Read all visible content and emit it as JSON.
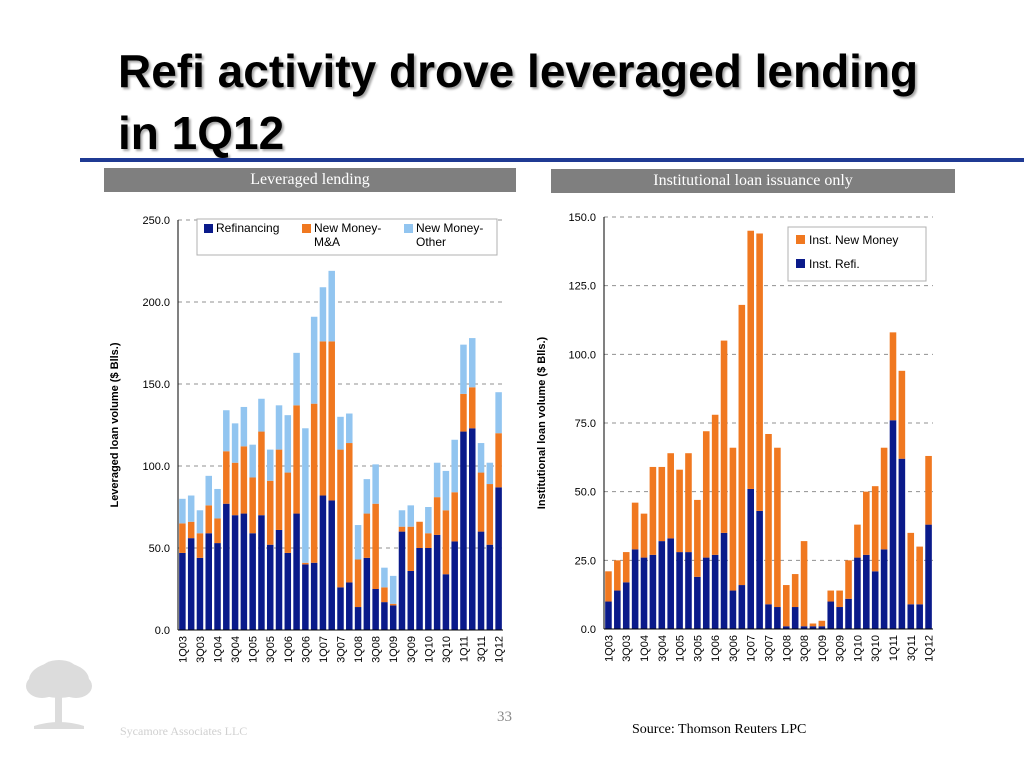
{
  "slide": {
    "title": "Refi activity drove leveraged lending in 1Q12",
    "page_number": "33",
    "source": "Source: Thomson Reuters LPC",
    "company": "Sycamore Associates LLC",
    "accent_color": "#1f3a93"
  },
  "chart_data": [
    {
      "type": "bar",
      "stacked": true,
      "panel_title": "Leveraged lending",
      "ylabel": "Leveraged loan volume ($ Blls.)",
      "ylim": [
        0,
        250
      ],
      "yticks": [
        "0.0",
        "50.0",
        "100.0",
        "150.0",
        "200.0",
        "250.0"
      ],
      "grid": true,
      "legend_position": "top",
      "categories": [
        "1Q03",
        "2Q03",
        "3Q03",
        "4Q03",
        "1Q04",
        "2Q04",
        "3Q04",
        "4Q04",
        "1Q05",
        "2Q05",
        "3Q05",
        "4Q05",
        "1Q06",
        "2Q06",
        "3Q06",
        "4Q06",
        "1Q07",
        "2Q07",
        "3Q07",
        "4Q07",
        "1Q08",
        "2Q08",
        "3Q08",
        "4Q08",
        "1Q09",
        "2Q09",
        "3Q09",
        "4Q09",
        "1Q10",
        "2Q10",
        "3Q10",
        "4Q10",
        "1Q11",
        "2Q11",
        "3Q11",
        "4Q11",
        "1Q12"
      ],
      "tick_labels": [
        "1Q03",
        "3Q03",
        "1Q04",
        "3Q04",
        "1Q05",
        "3Q05",
        "1Q06",
        "3Q06",
        "1Q07",
        "3Q07",
        "1Q08",
        "3Q08",
        "1Q09",
        "3Q09",
        "1Q10",
        "3Q10",
        "1Q11",
        "3Q11",
        "1Q12"
      ],
      "series": [
        {
          "name": "Refinancing",
          "color": "#0a1a8a",
          "values": [
            47,
            56,
            44,
            59,
            53,
            77,
            70,
            71,
            59,
            70,
            52,
            61,
            47,
            71,
            40,
            41,
            82,
            79,
            26,
            29,
            14,
            44,
            25,
            17,
            15,
            60,
            36,
            50,
            50,
            58,
            34,
            54,
            121,
            123,
            60,
            52,
            87
          ]
        },
        {
          "name": "New Money-M&A",
          "color": "#f07820",
          "values": [
            18,
            10,
            15,
            17,
            15,
            32,
            32,
            41,
            34,
            51,
            39,
            49,
            49,
            66,
            1,
            97,
            94,
            97,
            84,
            85,
            29,
            27,
            52,
            9,
            1,
            3,
            27,
            16,
            9,
            23,
            39,
            30,
            23,
            25,
            36,
            37,
            33
          ]
        },
        {
          "name": "New Money-Other",
          "color": "#92c5f0",
          "values": [
            15,
            16,
            14,
            18,
            18,
            25,
            24,
            24,
            20,
            20,
            19,
            27,
            35,
            32,
            82,
            53,
            33,
            43,
            20,
            18,
            21,
            21,
            24,
            12,
            17,
            10,
            13,
            0,
            16,
            21,
            24,
            32,
            30,
            30,
            18,
            13,
            25
          ]
        }
      ]
    },
    {
      "type": "bar",
      "stacked": true,
      "panel_title": "Institutional loan issuance only",
      "ylabel": "Institutional loan volume ($ Blls.)",
      "ylim": [
        0,
        150
      ],
      "yticks": [
        "0.0",
        "25.0",
        "50.0",
        "75.0",
        "100.0",
        "125.0",
        "150.0"
      ],
      "grid": true,
      "legend_position": "top-right",
      "categories": [
        "1Q03",
        "2Q03",
        "3Q03",
        "4Q03",
        "1Q04",
        "2Q04",
        "3Q04",
        "4Q04",
        "1Q05",
        "2Q05",
        "3Q05",
        "4Q05",
        "1Q06",
        "2Q06",
        "3Q06",
        "4Q06",
        "1Q07",
        "2Q07",
        "3Q07",
        "4Q07",
        "1Q08",
        "2Q08",
        "3Q08",
        "4Q08",
        "1Q09",
        "2Q09",
        "3Q09",
        "4Q09",
        "1Q10",
        "2Q10",
        "3Q10",
        "4Q10",
        "1Q11",
        "2Q11",
        "3Q11",
        "4Q11",
        "1Q12"
      ],
      "tick_labels": [
        "1Q03",
        "3Q03",
        "1Q04",
        "3Q04",
        "1Q05",
        "3Q05",
        "1Q06",
        "3Q06",
        "1Q07",
        "3Q07",
        "1Q08",
        "3Q08",
        "1Q09",
        "3Q09",
        "1Q10",
        "3Q10",
        "1Q11",
        "3Q11",
        "1Q12"
      ],
      "series": [
        {
          "name": "Inst. Refi.",
          "color": "#0a1a8a",
          "values": [
            10,
            14,
            17,
            29,
            26,
            27,
            32,
            33,
            28,
            28,
            19,
            26,
            27,
            35,
            14,
            16,
            51,
            43,
            9,
            8,
            1,
            8,
            1,
            1,
            1,
            10,
            8,
            11,
            26,
            27,
            21,
            29,
            76,
            62,
            9,
            9,
            38
          ]
        },
        {
          "name": "Inst. New Money",
          "color": "#f07820",
          "values": [
            11,
            11,
            11,
            17,
            16,
            32,
            27,
            31,
            30,
            36,
            28,
            46,
            51,
            70,
            52,
            102,
            94,
            101,
            62,
            58,
            15,
            12,
            31,
            1,
            2,
            4,
            6,
            14,
            12,
            23,
            31,
            37,
            32,
            32,
            26,
            21,
            25
          ]
        }
      ]
    }
  ]
}
